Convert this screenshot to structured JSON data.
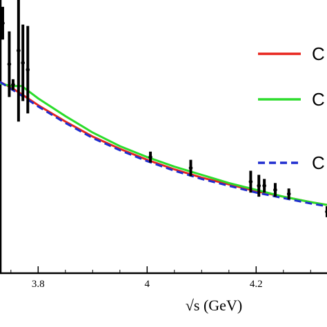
{
  "chart_data": {
    "type": "line",
    "xlabel": "√s (GeV)",
    "xlim": [
      3.73,
      4.33
    ],
    "ylim": [
      0,
      1
    ],
    "x_ticks": [
      3.8,
      4,
      4.2
    ],
    "x_tick_labels": [
      "3.8",
      "4",
      "4.2"
    ],
    "grid": false,
    "legend_position": "top-right",
    "series": [
      {
        "name": "C",
        "color": "#e8261e",
        "dash": "solid",
        "x": [
          3.73,
          3.75,
          3.77,
          3.8,
          3.85,
          3.9,
          3.95,
          4.0,
          4.05,
          4.1,
          4.15,
          4.2,
          4.25,
          4.3,
          4.33
        ],
        "y": [
          0.7,
          0.68,
          0.655,
          0.615,
          0.555,
          0.5,
          0.455,
          0.415,
          0.38,
          0.35,
          0.325,
          0.3,
          0.28,
          0.26,
          0.25
        ]
      },
      {
        "name": "C",
        "color": "#2bdc2b",
        "dash": "solid",
        "x": [
          3.73,
          3.75,
          3.77,
          3.8,
          3.85,
          3.9,
          3.95,
          4.0,
          4.05,
          4.1,
          4.15,
          4.2,
          4.25,
          4.3,
          4.33
        ],
        "y": [
          0.695,
          0.685,
          0.685,
          0.64,
          0.575,
          0.515,
          0.465,
          0.425,
          0.39,
          0.36,
          0.33,
          0.305,
          0.28,
          0.26,
          0.25
        ]
      },
      {
        "name": "C",
        "color": "#1f2dcf",
        "dash": "dashed",
        "x": [
          3.73,
          3.75,
          3.77,
          3.8,
          3.85,
          3.9,
          3.95,
          4.0,
          4.05,
          4.1,
          4.15,
          4.2,
          4.25,
          4.3,
          4.33
        ],
        "y": [
          0.7,
          0.675,
          0.65,
          0.61,
          0.55,
          0.495,
          0.45,
          0.41,
          0.375,
          0.345,
          0.32,
          0.295,
          0.275,
          0.255,
          0.245
        ]
      }
    ],
    "points": [
      {
        "x": 3.735,
        "y": 0.915,
        "err": 0.06
      },
      {
        "x": 3.747,
        "y": 0.765,
        "err": 0.12
      },
      {
        "x": 3.754,
        "y": 0.69,
        "err": 0.02
      },
      {
        "x": 3.764,
        "y": 0.815,
        "err": 0.26
      },
      {
        "x": 3.772,
        "y": 0.77,
        "err": 0.14
      },
      {
        "x": 3.781,
        "y": 0.745,
        "err": 0.16
      },
      {
        "x": 4.006,
        "y": 0.425,
        "err": 0.02
      },
      {
        "x": 4.08,
        "y": 0.385,
        "err": 0.03
      },
      {
        "x": 4.19,
        "y": 0.335,
        "err": 0.04
      },
      {
        "x": 4.205,
        "y": 0.32,
        "err": 0.04
      },
      {
        "x": 4.215,
        "y": 0.32,
        "err": 0.025
      },
      {
        "x": 4.235,
        "y": 0.305,
        "err": 0.025
      },
      {
        "x": 4.26,
        "y": 0.29,
        "err": 0.02
      },
      {
        "x": 4.33,
        "y": 0.225,
        "err": 0.02
      }
    ]
  }
}
